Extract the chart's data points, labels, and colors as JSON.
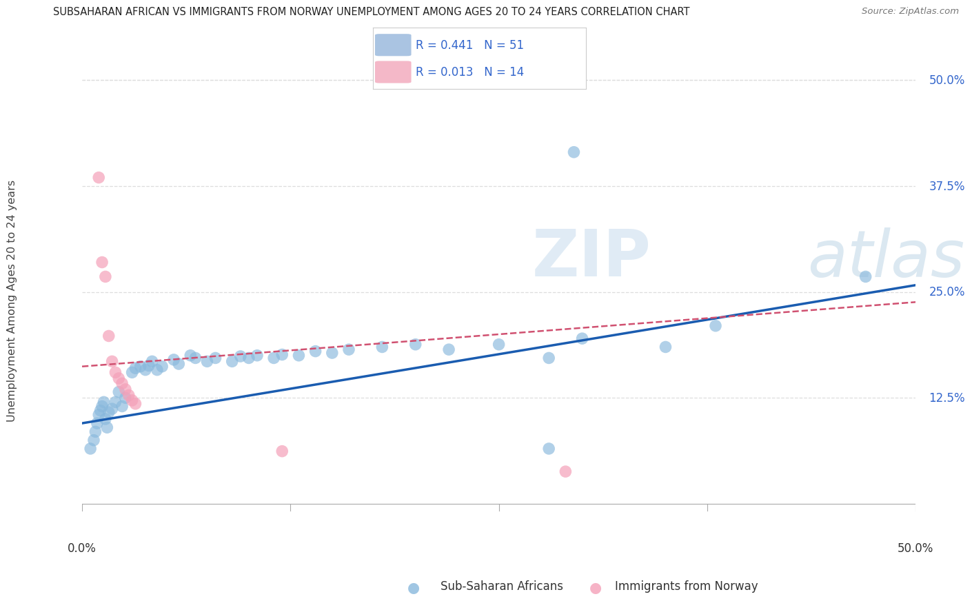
{
  "title": "SUBSAHARAN AFRICAN VS IMMIGRANTS FROM NORWAY UNEMPLOYMENT AMONG AGES 20 TO 24 YEARS CORRELATION CHART",
  "source": "Source: ZipAtlas.com",
  "ylabel": "Unemployment Among Ages 20 to 24 years",
  "ytick_labels": [
    "12.5%",
    "25.0%",
    "37.5%",
    "50.0%"
  ],
  "ytick_vals": [
    0.125,
    0.25,
    0.375,
    0.5
  ],
  "xlim": [
    0.0,
    0.5
  ],
  "ylim": [
    -0.055,
    0.54
  ],
  "legend_blue_label": "R = 0.441   N = 51",
  "legend_pink_label": "R = 0.013   N = 14",
  "legend_blue_color": "#aac4e2",
  "legend_pink_color": "#f4b8c8",
  "scatter_blue_color": "#88b8dc",
  "scatter_pink_color": "#f4a0b8",
  "trendline_blue_color": "#1a5cb0",
  "trendline_pink_color": "#d05070",
  "tick_label_color": "#3366cc",
  "bg_color": "#ffffff",
  "grid_color": "#dddddd",
  "blue_scatter": [
    [
      0.005,
      0.065
    ],
    [
      0.007,
      0.075
    ],
    [
      0.008,
      0.085
    ],
    [
      0.009,
      0.095
    ],
    [
      0.01,
      0.105
    ],
    [
      0.011,
      0.11
    ],
    [
      0.012,
      0.115
    ],
    [
      0.013,
      0.12
    ],
    [
      0.014,
      0.1
    ],
    [
      0.015,
      0.09
    ],
    [
      0.016,
      0.108
    ],
    [
      0.018,
      0.112
    ],
    [
      0.02,
      0.12
    ],
    [
      0.022,
      0.132
    ],
    [
      0.024,
      0.115
    ],
    [
      0.026,
      0.125
    ],
    [
      0.03,
      0.155
    ],
    [
      0.032,
      0.16
    ],
    [
      0.035,
      0.162
    ],
    [
      0.038,
      0.158
    ],
    [
      0.04,
      0.163
    ],
    [
      0.042,
      0.168
    ],
    [
      0.045,
      0.158
    ],
    [
      0.048,
      0.162
    ],
    [
      0.055,
      0.17
    ],
    [
      0.058,
      0.165
    ],
    [
      0.065,
      0.175
    ],
    [
      0.068,
      0.172
    ],
    [
      0.075,
      0.168
    ],
    [
      0.08,
      0.172
    ],
    [
      0.09,
      0.168
    ],
    [
      0.095,
      0.174
    ],
    [
      0.1,
      0.172
    ],
    [
      0.105,
      0.175
    ],
    [
      0.115,
      0.172
    ],
    [
      0.12,
      0.176
    ],
    [
      0.13,
      0.175
    ],
    [
      0.14,
      0.18
    ],
    [
      0.15,
      0.178
    ],
    [
      0.16,
      0.182
    ],
    [
      0.18,
      0.185
    ],
    [
      0.2,
      0.188
    ],
    [
      0.22,
      0.182
    ],
    [
      0.25,
      0.188
    ],
    [
      0.28,
      0.172
    ],
    [
      0.3,
      0.195
    ],
    [
      0.35,
      0.185
    ],
    [
      0.38,
      0.21
    ],
    [
      0.47,
      0.268
    ],
    [
      0.28,
      0.065
    ],
    [
      0.295,
      0.415
    ]
  ],
  "pink_scatter": [
    [
      0.01,
      0.385
    ],
    [
      0.012,
      0.285
    ],
    [
      0.014,
      0.268
    ],
    [
      0.016,
      0.198
    ],
    [
      0.018,
      0.168
    ],
    [
      0.02,
      0.155
    ],
    [
      0.022,
      0.148
    ],
    [
      0.024,
      0.142
    ],
    [
      0.026,
      0.135
    ],
    [
      0.028,
      0.128
    ],
    [
      0.03,
      0.122
    ],
    [
      0.032,
      0.118
    ],
    [
      0.12,
      0.062
    ],
    [
      0.29,
      0.038
    ]
  ],
  "blue_trend_x": [
    0.0,
    0.5
  ],
  "blue_trend_y": [
    0.095,
    0.258
  ],
  "pink_trend_x": [
    0.0,
    0.5
  ],
  "pink_trend_y": [
    0.162,
    0.238
  ],
  "watermark_zip_color": "#c8dced",
  "watermark_atlas_color": "#b0cce0"
}
